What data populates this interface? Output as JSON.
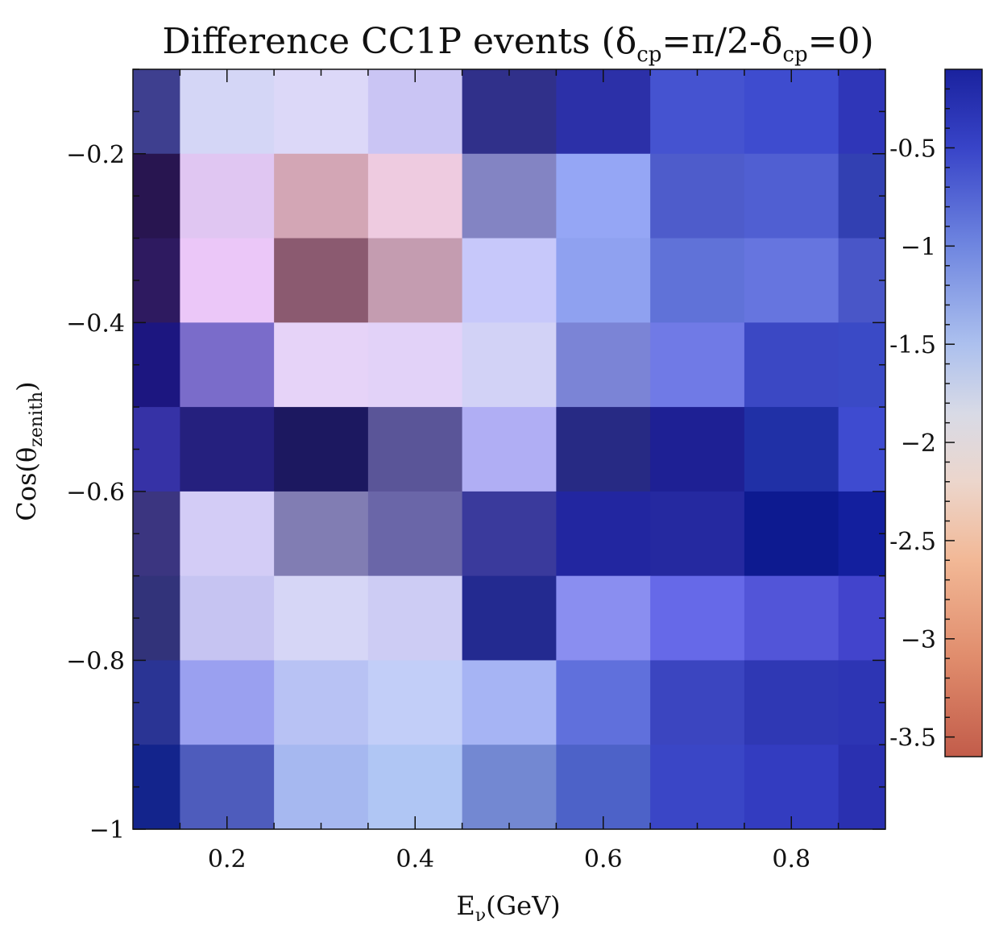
{
  "chart_data": {
    "type": "heatmap",
    "title": {
      "prefix": "Difference CC1P events (",
      "delta": "δ",
      "cp": "cp",
      "mid": "=π/2-",
      "suffix": "=0)"
    },
    "xlabel": {
      "main": "E",
      "sub": "ν",
      "rest": "(GeV)"
    },
    "ylabel": {
      "main": "Cos(θ",
      "sub": "zenith",
      "rest": ")"
    },
    "x_edges": [
      0.1,
      0.15,
      0.25,
      0.35,
      0.45,
      0.55,
      0.65,
      0.75,
      0.85,
      0.9
    ],
    "y_edges": [
      -1.0,
      -0.9,
      -0.8,
      -0.7,
      -0.6,
      -0.5,
      -0.4,
      -0.3,
      -0.2,
      -0.1
    ],
    "xlim": [
      0.1,
      0.9
    ],
    "ylim": [
      -1.0,
      -0.1
    ],
    "x_ticks": [
      {
        "value": 0.2,
        "label": "0.2"
      },
      {
        "value": 0.4,
        "label": "0.4"
      },
      {
        "value": 0.6,
        "label": "0.6"
      },
      {
        "value": 0.8,
        "label": "0.8"
      }
    ],
    "y_ticks": [
      {
        "value": -1.0,
        "label": "−1"
      },
      {
        "value": -0.8,
        "label": "−0.8"
      },
      {
        "value": -0.6,
        "label": "−0.6"
      },
      {
        "value": -0.4,
        "label": "−0.4"
      },
      {
        "value": -0.2,
        "label": "−0.2"
      }
    ],
    "rows_top_to_bottom": [
      [
        "#2f3d8f",
        "#7f8fdc",
        "#7180c8",
        "#5866b8",
        "#2e2e9e",
        "#2a28a4",
        "#3a45cb",
        "#3540c8",
        "#1a22a8"
      ],
      [
        "#3e3f8f",
        "#d4d6f6",
        "#dcd8f8",
        "#cac5f4",
        "#30308a",
        "#2c30a8",
        "#4553d0",
        "#3e4ccf",
        "#2f36b8"
      ],
      [
        "#281550",
        "#e0c6f2",
        "#d3a6b5",
        "#eecbe0",
        "#8384c3",
        "#95a6f5",
        "#4e5ccb",
        "#505fd2",
        "#3240b2"
      ],
      [
        "#2e1a60",
        "#ebc7f8",
        "#8b5a70",
        "#c49cb0",
        "#c7c8fa",
        "#8fa1f0",
        "#6072d8",
        "#6675df",
        "#4956c8"
      ],
      [
        "#1c1680",
        "#7a6cca",
        "#e6d3f8",
        "#e2d2f8",
        "#d2d2f6",
        "#7b84d6",
        "#707ae6",
        "#3b48c4",
        "#3a4ac6"
      ],
      [
        "#3632a6",
        "#25207e",
        "#1c1860",
        "#5a5598",
        "#b0aef4",
        "#272a84",
        "#1e2094",
        "#2030a6",
        "#3e4bd0"
      ],
      [
        "#3b3580",
        "#d3ccf6",
        "#817db3",
        "#6a66a8",
        "#3a3a9c",
        "#2226a0",
        "#2529a0",
        "#0d1a90",
        "#131f9e"
      ],
      [
        "#32337a",
        "#c6c4f2",
        "#d6d6f6",
        "#cdccf4",
        "#232a90",
        "#8a8ef0",
        "#6669e8",
        "#5255d8",
        "#4244cc"
      ],
      [
        "#2a3494",
        "#9aa0f0",
        "#b8c2f4",
        "#c2cef8",
        "#a6b4f4",
        "#6070dc",
        "#3b45c0",
        "#2f38b4",
        "#2d35b4"
      ],
      [
        "#13248c",
        "#4e5cbc",
        "#a6b8f0",
        "#b0c6f4",
        "#7388d2",
        "#4d62c8",
        "#3a46c6",
        "#333cc0",
        "#2a30b0"
      ]
    ],
    "colorbar": {
      "vmin": -3.6,
      "vmax": -0.1,
      "ticks": [
        {
          "value": -0.5,
          "label": "-0.5"
        },
        {
          "value": -1.0,
          "label": "−1"
        },
        {
          "value": -1.5,
          "label": "-1.5"
        },
        {
          "value": -2.0,
          "label": "−2"
        },
        {
          "value": -2.5,
          "label": "-2.5"
        },
        {
          "value": -3.0,
          "label": "−3"
        },
        {
          "value": -3.5,
          "label": "-3.5"
        }
      ],
      "gradient_stops": [
        {
          "value": -0.1,
          "color": "#1a229e"
        },
        {
          "value": -0.5,
          "color": "#3844c8"
        },
        {
          "value": -1.0,
          "color": "#6f86e0"
        },
        {
          "value": -1.5,
          "color": "#acc0ee"
        },
        {
          "value": -1.85,
          "color": "#d8dae6"
        },
        {
          "value": -2.2,
          "color": "#ecd6cc"
        },
        {
          "value": -2.6,
          "color": "#f2b896"
        },
        {
          "value": -3.1,
          "color": "#e08c6c"
        },
        {
          "value": -3.6,
          "color": "#c25c4a"
        }
      ]
    }
  }
}
